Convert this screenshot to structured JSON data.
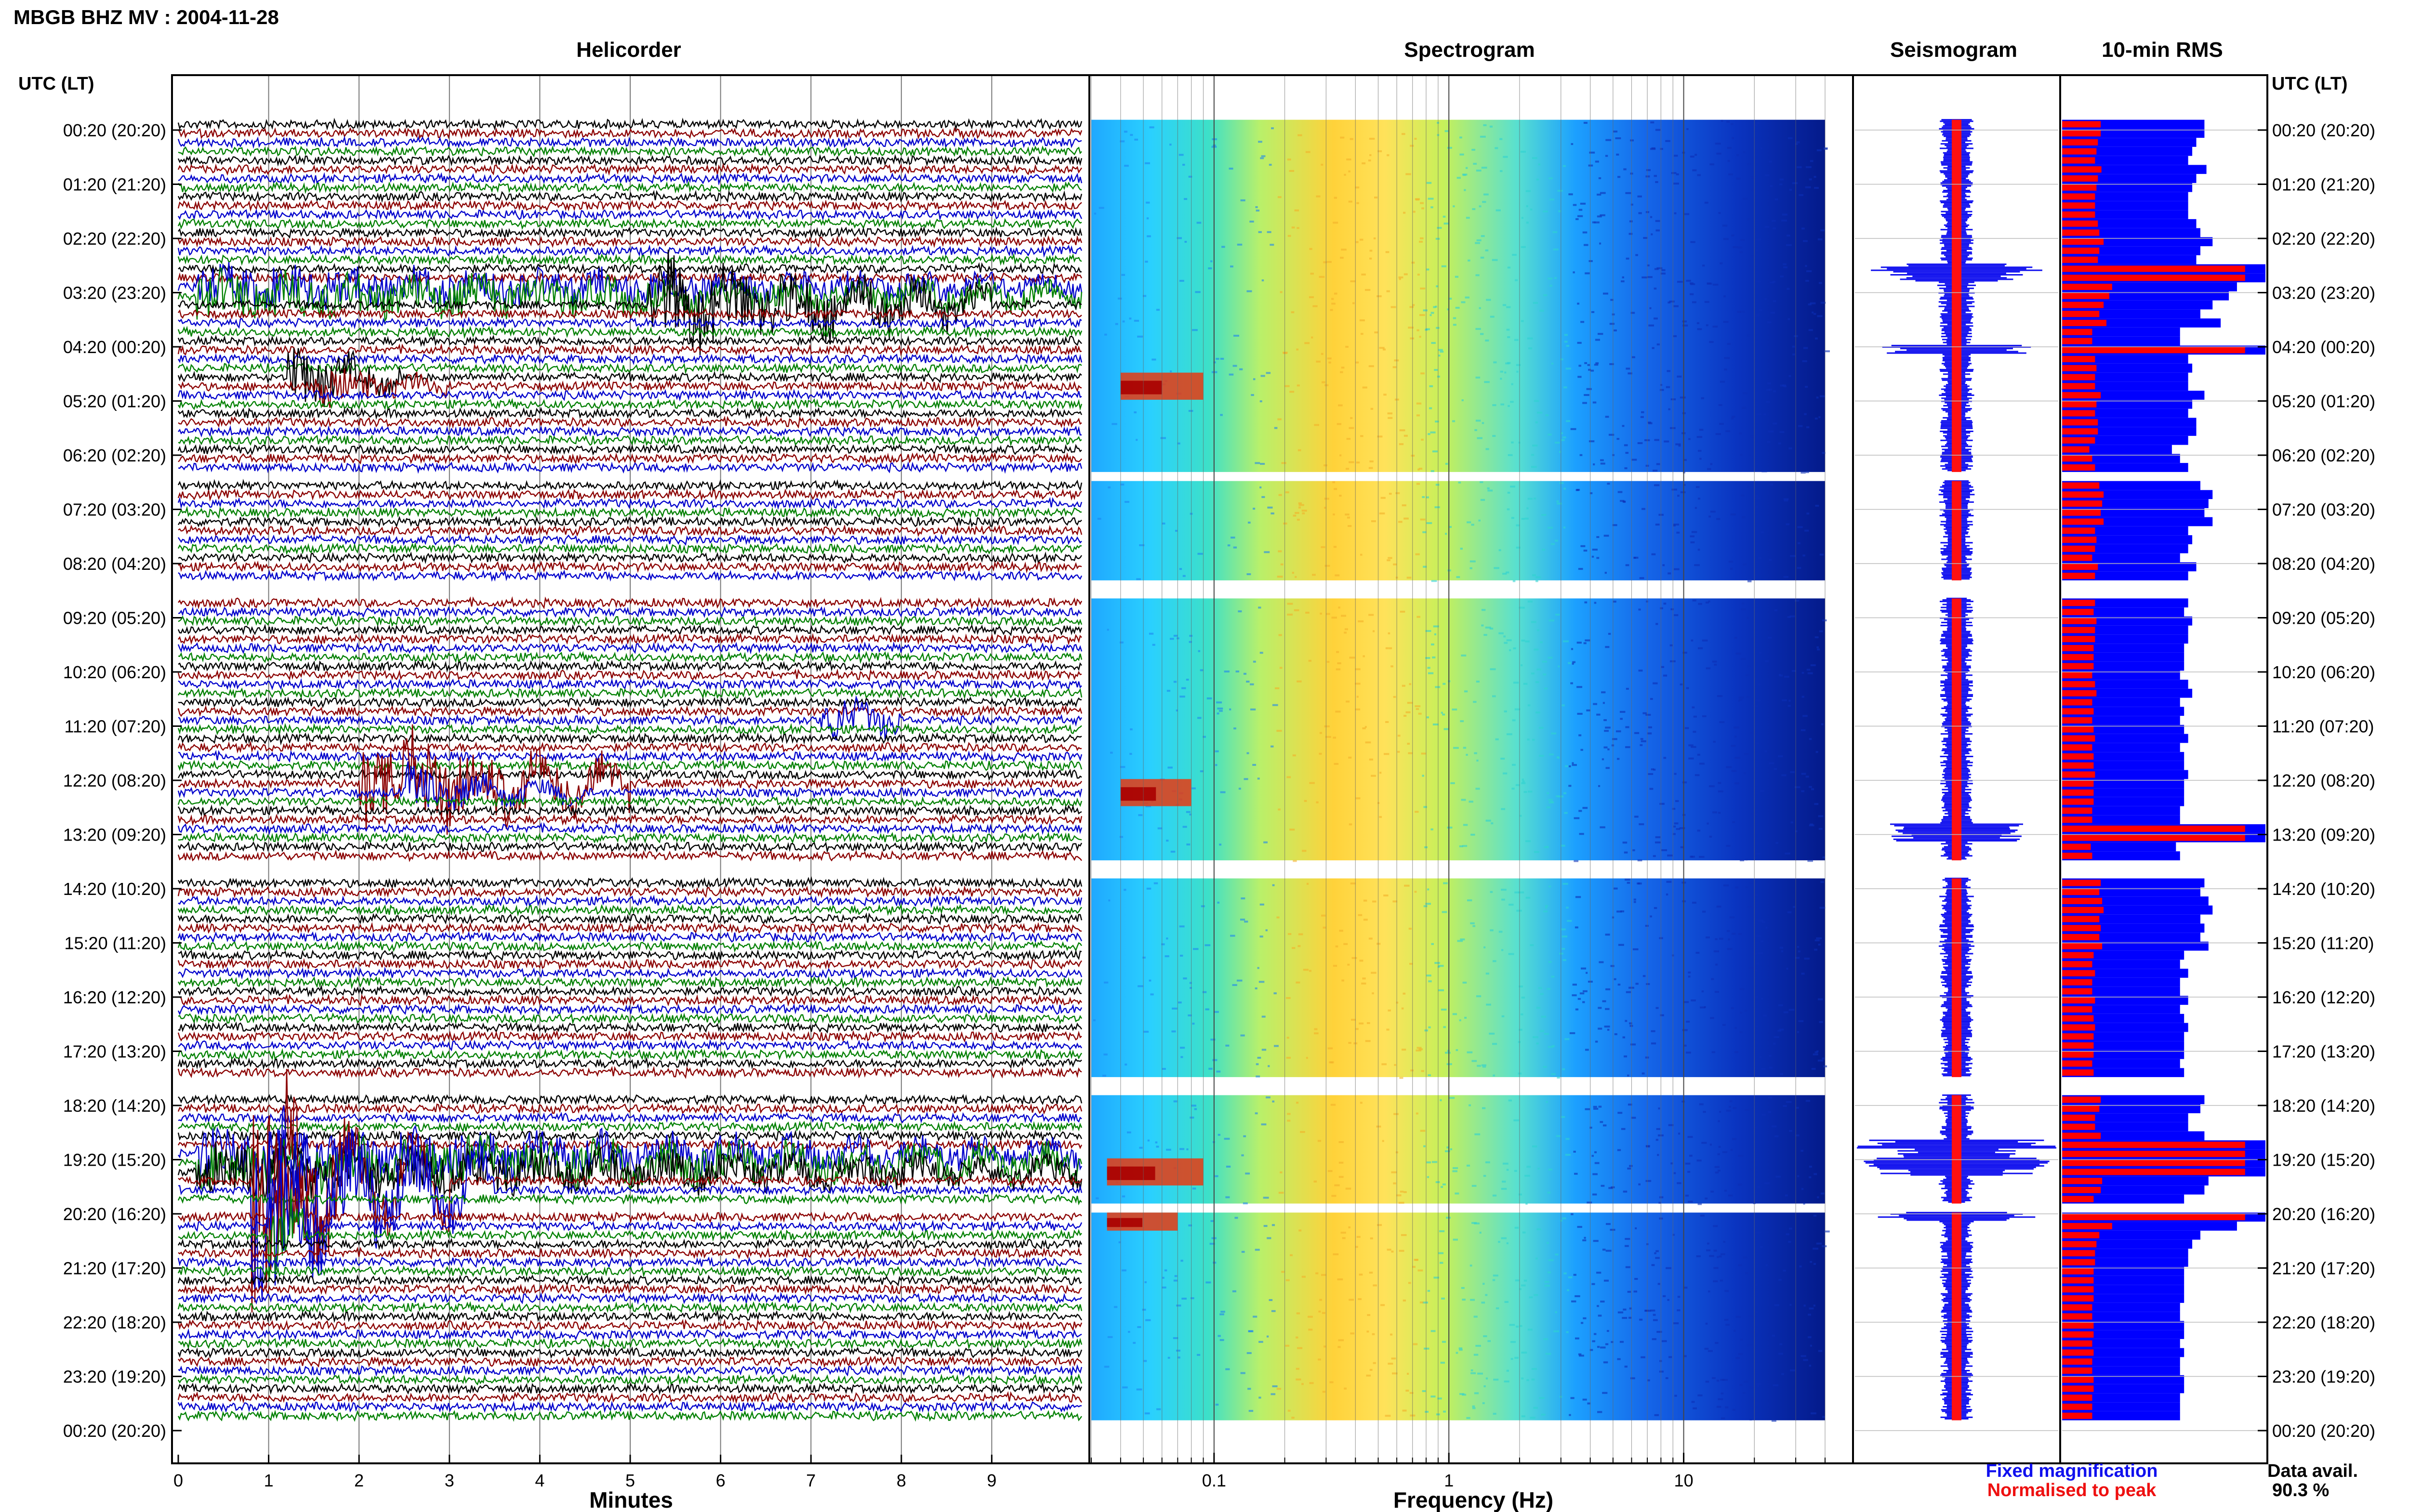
{
  "header": {
    "station_title": "MBGB BHZ MV : 2004-11-28",
    "utc_label_left": "UTC (LT)",
    "utc_label_right": "UTC (LT)"
  },
  "panels": {
    "helicorder": "Helicorder",
    "spectrogram": "Spectrogram",
    "seismogram": "Seismogram",
    "rms": "10-min RMS"
  },
  "time_labels": [
    "00:20 (20:20)",
    "01:20 (21:20)",
    "02:20 (22:20)",
    "03:20 (23:20)",
    "04:20 (00:20)",
    "05:20 (01:20)",
    "06:20 (02:20)",
    "07:20 (03:20)",
    "08:20 (04:20)",
    "09:20 (05:20)",
    "10:20 (06:20)",
    "11:20 (07:20)",
    "12:20 (08:20)",
    "13:20 (09:20)",
    "14:20 (10:20)",
    "15:20 (11:20)",
    "16:20 (12:20)",
    "17:20 (13:20)",
    "18:20 (14:20)",
    "19:20 (15:20)",
    "20:20 (16:20)",
    "21:20 (17:20)",
    "22:20 (18:20)",
    "23:20 (19:20)",
    "00:20 (20:20)"
  ],
  "x_axes": {
    "minutes_label": "Minutes",
    "minutes_ticks": [
      "0",
      "1",
      "2",
      "3",
      "4",
      "5",
      "6",
      "7",
      "8",
      "9"
    ],
    "frequency_label": "Frequency (Hz)",
    "frequency_ticks": [
      "0.1",
      "1",
      "10"
    ]
  },
  "legend": {
    "fixed": "Fixed magnification",
    "normalised": "Normalised to peak",
    "fixed_color": "#1010ee",
    "normalised_color": "#ee1010"
  },
  "availability": {
    "label": "Data avail.",
    "value": "90.3 %"
  },
  "colors": {
    "trace": [
      "#000000",
      "#8b0000",
      "#0000cc",
      "#008000"
    ],
    "rms_fixed": "#0000ff",
    "rms_normalised": "#ff0000"
  },
  "chart_data": {
    "type": "heatmap",
    "title": "MBGB BHZ MV : 2004-11-28",
    "helicorder_xlabel": "Minutes",
    "spectrogram_xlabel": "Frequency (Hz)",
    "frequency_scale": "log",
    "frequency_range_hz": [
      0.03,
      40
    ],
    "minutes_range": [
      0,
      10
    ],
    "rows_per_hour": 6,
    "data_gaps_utc": [
      "06:30-06:40",
      "08:30-08:50",
      "13:40-14:00",
      "17:40-18:00",
      "20:00-20:10"
    ],
    "events_utc": [
      "03:20",
      "04:40",
      "07:30",
      "09:20",
      "11:00",
      "13:00",
      "19:10",
      "20:50"
    ],
    "rms_levels_10min": [
      0.7,
      0.7,
      0.66,
      0.64,
      0.62,
      0.71,
      0.66,
      0.64,
      0.62,
      0.62,
      0.62,
      0.66,
      0.68,
      0.74,
      0.68,
      0.66,
      1.0,
      1.0,
      0.86,
      0.82,
      0.74,
      0.68,
      0.78,
      0.58,
      0.58,
      1.0,
      0.62,
      0.64,
      0.62,
      0.62,
      0.7,
      0.64,
      0.62,
      0.66,
      0.66,
      0.62,
      0.54,
      0.58,
      0.62,
      0.7,
      0.68,
      0.74,
      0.72,
      0.7,
      0.74,
      0.62,
      0.64,
      0.62,
      0.58,
      0.66,
      0.62,
      0.62,
      0.62,
      0.62,
      0.6,
      0.64,
      0.62,
      0.62,
      0.6,
      0.6,
      0.6,
      0.58,
      0.62,
      0.64,
      0.58,
      0.6,
      0.58,
      0.6,
      0.62,
      0.58,
      0.6,
      0.6,
      0.62,
      0.6,
      0.6,
      0.6,
      0.58,
      0.58,
      1.0,
      1.0,
      0.56,
      0.58,
      0.62,
      0.6,
      0.7,
      0.68,
      0.72,
      0.74,
      0.68,
      0.7,
      0.68,
      0.72,
      0.6,
      0.58,
      0.62,
      0.58,
      0.58,
      0.62,
      0.58,
      0.6,
      0.62,
      0.6,
      0.6,
      0.6,
      0.58,
      0.6,
      0.6,
      0.6,
      0.7,
      0.68,
      0.62,
      0.62,
      0.7,
      1.0,
      1.0,
      1.0,
      1.0,
      0.72,
      0.7,
      0.6,
      0.96,
      1.0,
      0.86,
      0.68,
      0.64,
      0.62,
      0.62,
      0.6,
      0.6,
      0.6,
      0.6,
      0.58,
      0.58,
      0.6,
      0.6,
      0.58,
      0.6,
      0.58,
      0.58,
      0.6,
      0.6,
      0.58,
      0.58,
      0.58
    ]
  }
}
